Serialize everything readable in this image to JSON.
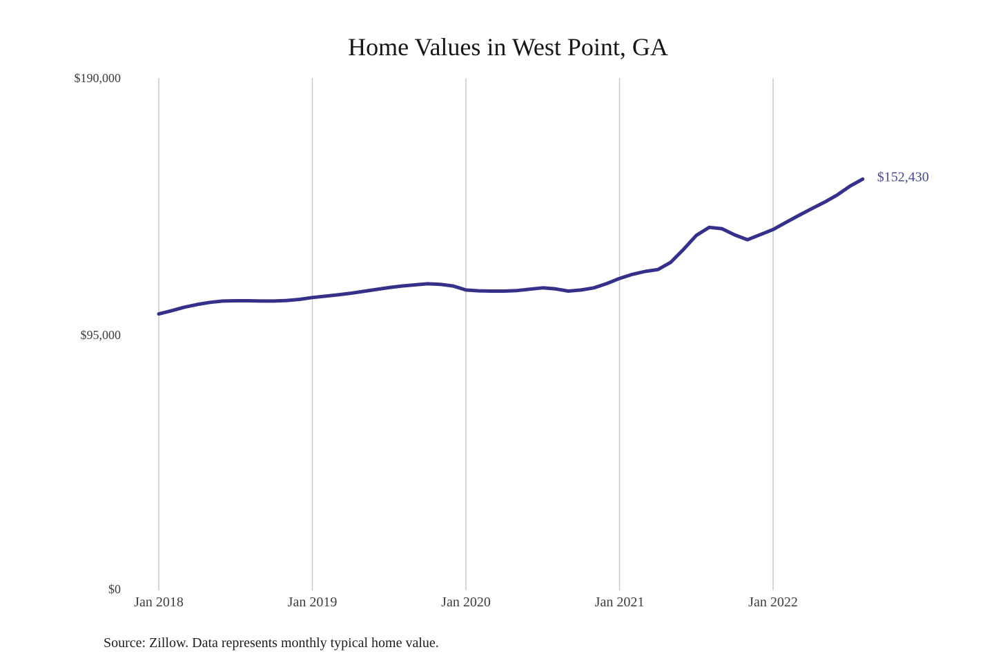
{
  "page": {
    "background": "#ffffff"
  },
  "chart_data": {
    "type": "line",
    "title": "Home Values in West Point, GA",
    "source_note": "Source: Zillow. Data represents monthly typical home value.",
    "end_label": "$152,430",
    "legend": "none",
    "grid": "vertical-only",
    "x_tick_labels": [
      "Jan 2018",
      "Jan 2019",
      "Jan 2020",
      "Jan 2021",
      "Jan 2022"
    ],
    "y_tick_labels": [
      "$190,000",
      "$95,000",
      "$0"
    ],
    "y_tick_values": [
      190000,
      95000,
      0
    ],
    "ylim": [
      0,
      190000
    ],
    "x_frequency": "monthly",
    "months": [
      "Jan 2018",
      "Feb 2018",
      "Mar 2018",
      "Apr 2018",
      "May 2018",
      "Jun 2018",
      "Jul 2018",
      "Aug 2018",
      "Sep 2018",
      "Oct 2018",
      "Nov 2018",
      "Dec 2018",
      "Jan 2019",
      "Feb 2019",
      "Mar 2019",
      "Apr 2019",
      "May 2019",
      "Jun 2019",
      "Jul 2019",
      "Aug 2019",
      "Sep 2019",
      "Oct 2019",
      "Nov 2019",
      "Dec 2019",
      "Jan 2020",
      "Feb 2020",
      "Mar 2020",
      "Apr 2020",
      "May 2020",
      "Jun 2020",
      "Jul 2020",
      "Aug 2020",
      "Sep 2020",
      "Oct 2020",
      "Nov 2020",
      "Dec 2020",
      "Jan 2021",
      "Feb 2021",
      "Mar 2021",
      "Apr 2021",
      "May 2021",
      "Jun 2021",
      "Jul 2021",
      "Aug 2021",
      "Sep 2021",
      "Oct 2021",
      "Nov 2021",
      "Dec 2021",
      "Jan 2022",
      "Feb 2022",
      "Mar 2022",
      "Apr 2022",
      "May 2022",
      "Jun 2022",
      "Jul 2022",
      "Aug 2022"
    ],
    "values": [
      102300,
      103500,
      104800,
      105800,
      106600,
      107100,
      107200,
      107200,
      107100,
      107100,
      107300,
      107700,
      108400,
      108900,
      109400,
      110000,
      110700,
      111400,
      112100,
      112700,
      113100,
      113500,
      113300,
      112700,
      111200,
      110900,
      110800,
      110800,
      111000,
      111500,
      112000,
      111600,
      110800,
      111200,
      112000,
      113600,
      115500,
      117000,
      118100,
      118800,
      121500,
      126300,
      131500,
      134500,
      134000,
      131700,
      129900,
      131800,
      133700,
      136300,
      138900,
      141400,
      143800,
      146500,
      149800,
      152430
    ],
    "colors": {
      "line": "#35318a",
      "annotation": "#4b4b8c",
      "gridline": "#c9c9c9",
      "title": "#161616",
      "axis_label": "#3d3d3d",
      "source": "#1d1d1d"
    }
  }
}
